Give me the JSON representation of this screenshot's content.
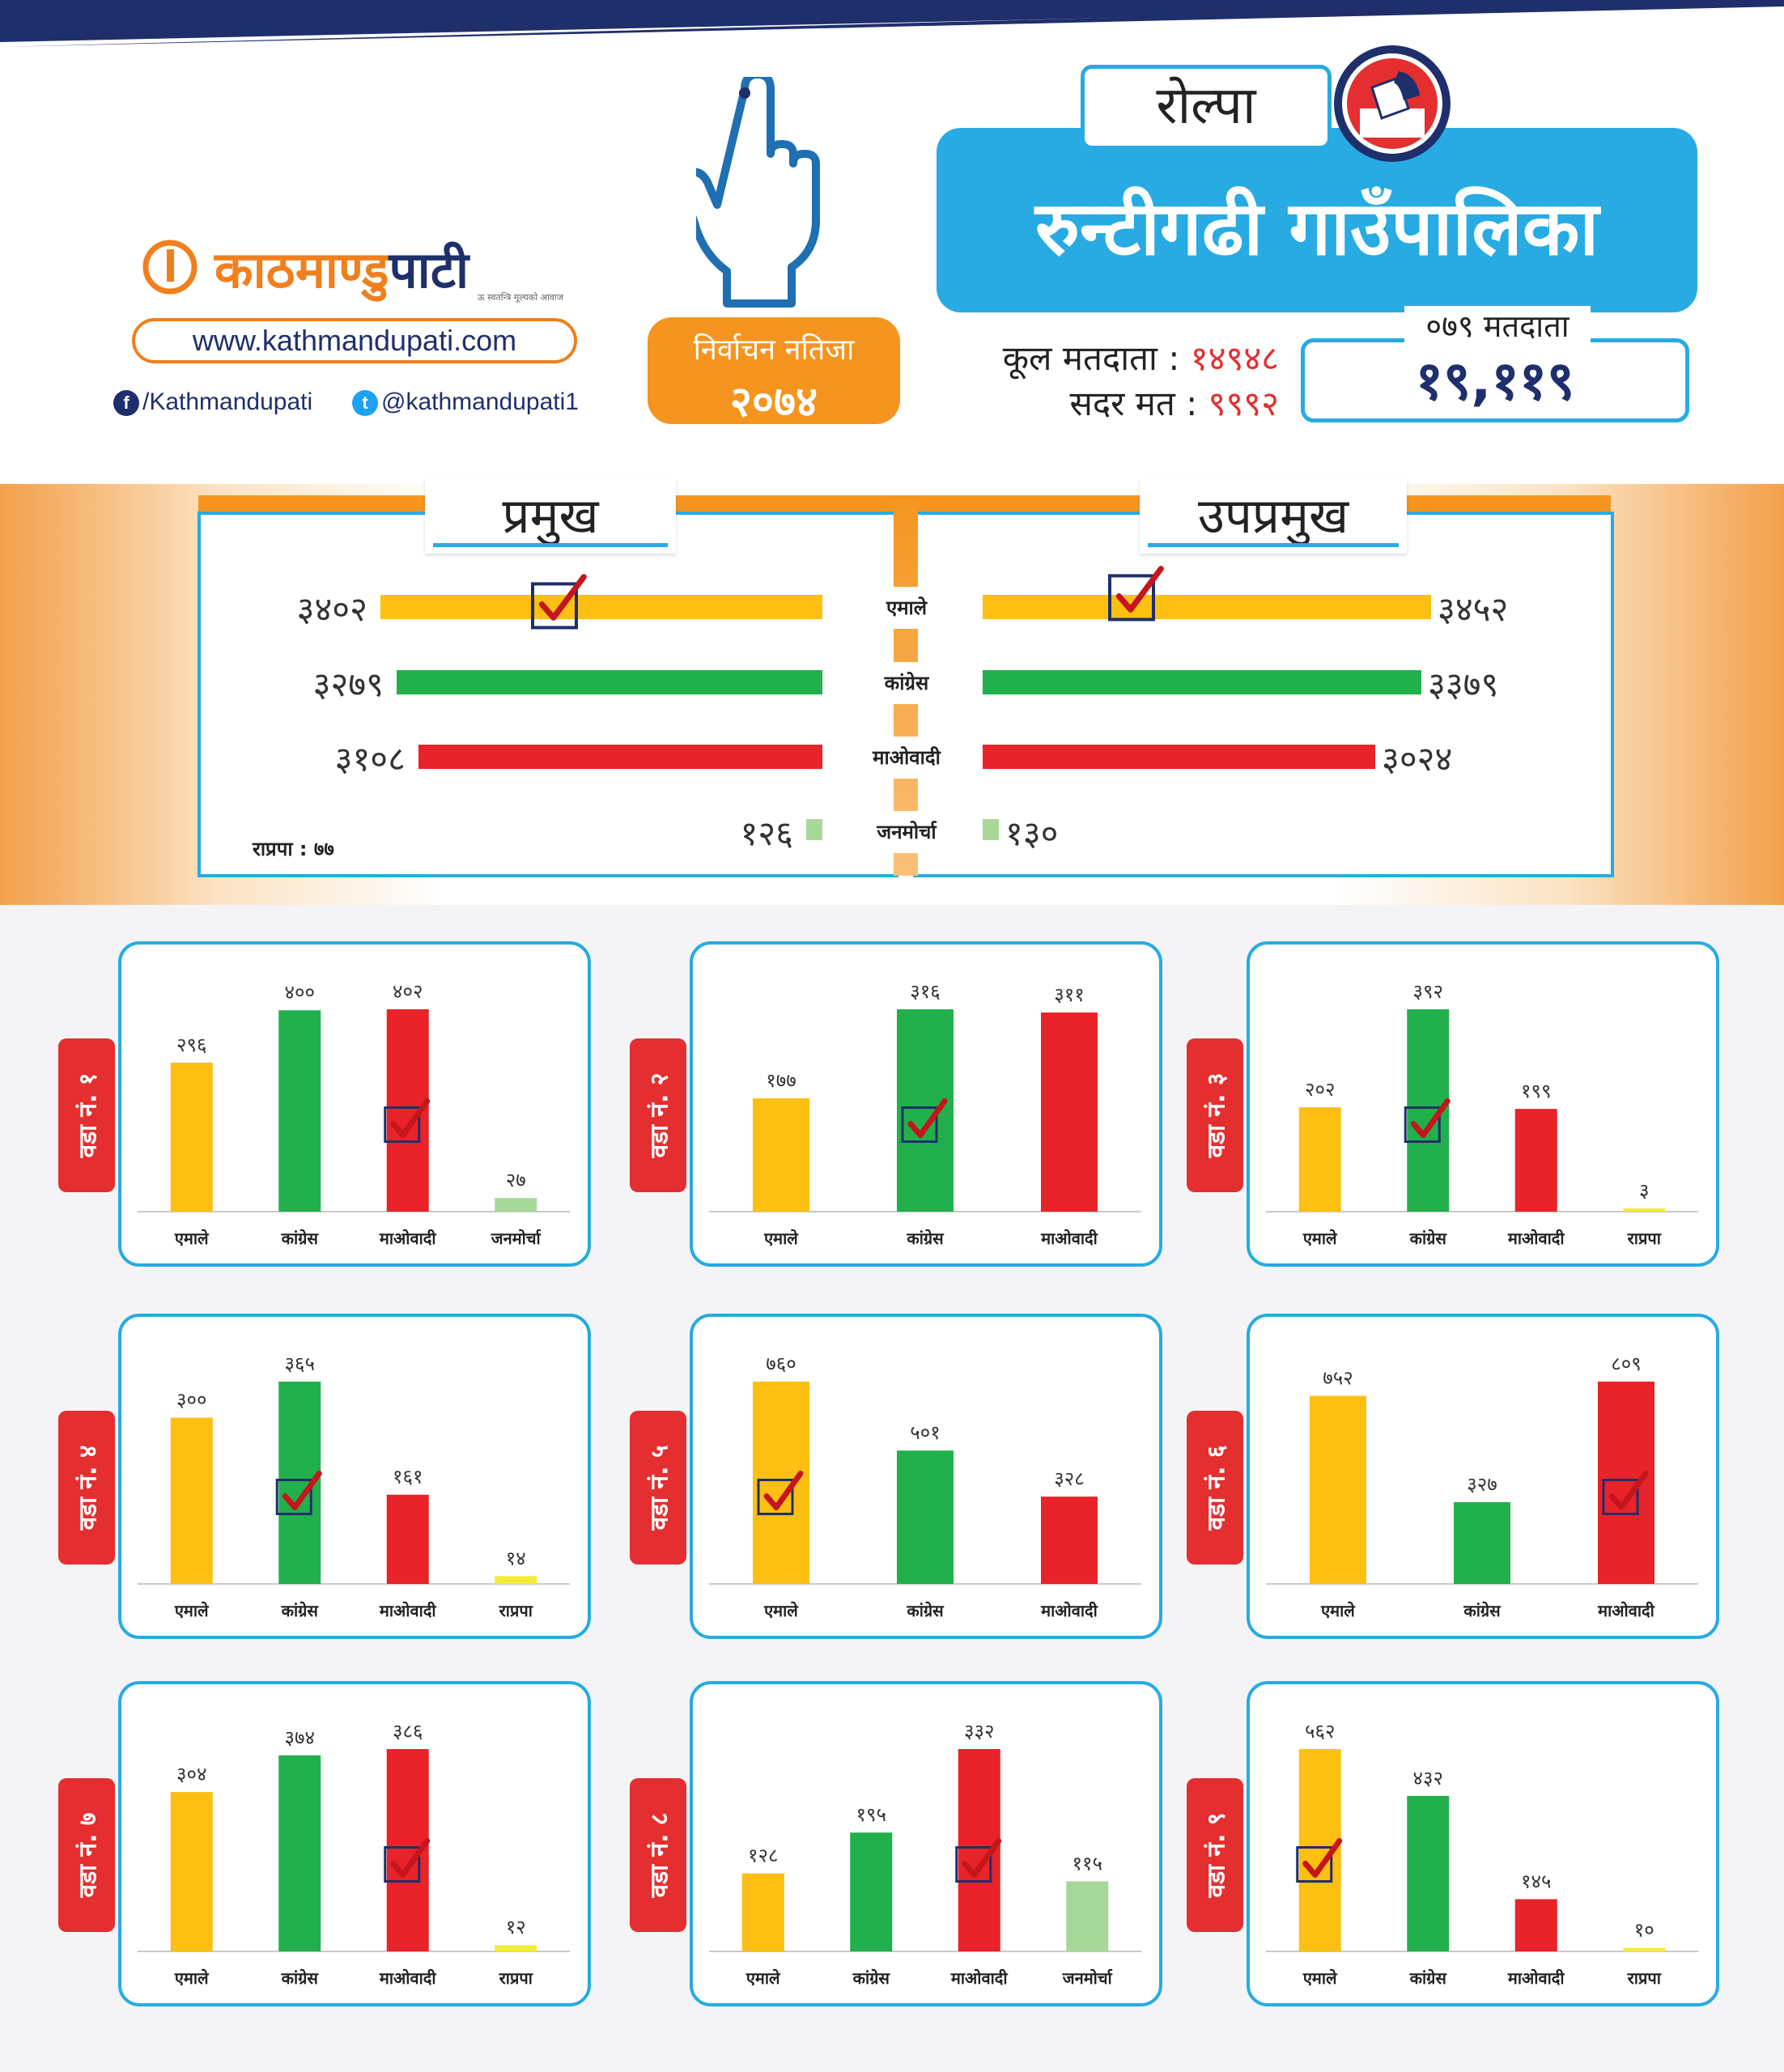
{
  "brand": {
    "logo_main": "काठमाण्डु",
    "logo_rest": "पाटी",
    "logo_tagline": "ऊ स्वतन्त्रि मूल्यको आवाज",
    "website": "www.kathmandupati.com",
    "facebook": "/Kathmandupati",
    "twitter": "@kathmandupati1"
  },
  "header": {
    "district": "रोल्पा",
    "municipality": "रुन्टीगढी गाउँपालिका",
    "result_label": "निर्वाचन नतिजा",
    "result_year": "२०७४",
    "total_voters_label": "कूल मतदाता :",
    "total_voters": "१४९४८",
    "valid_votes_label": "सदर मत :",
    "valid_votes": "९९९२",
    "voters_079_label": "०७९ मतदाता",
    "voters_079": "१९,११९"
  },
  "colors": {
    "एमाले": "#fcbf12",
    "कांग्रेस": "#21b04b",
    "माओवादी": "#e82329",
    "जनमोर्चा": "#a8d899",
    "राप्रपा": "#f4ec37",
    "accent": "#27abe2",
    "orange": "#f5951f"
  },
  "summary": {
    "chief_label": "प्रमुख",
    "deputy_label": "उपप्रमुख",
    "rpp_note": "राप्रपा : ७७",
    "parties": [
      {
        "name": "एमाले",
        "chief": "३४०२",
        "deputy": "३४५२",
        "chief_value": 3402,
        "deputy_value": 3452
      },
      {
        "name": "कांग्रेस",
        "chief": "३२७९",
        "deputy": "३३७९",
        "chief_value": 3279,
        "deputy_value": 3379
      },
      {
        "name": "माओवादी",
        "chief": "३१०८",
        "deputy": "३०२४",
        "chief_value": 3108,
        "deputy_value": 3024
      },
      {
        "name": "जनमोर्चा",
        "chief": "१२६",
        "deputy": "१३०",
        "chief_value": 126,
        "deputy_value": 130
      }
    ],
    "chief_winner": "एमाले",
    "deputy_winner": "एमाले"
  },
  "chart_data": [
    {
      "type": "bar",
      "title": "वडा नं. १",
      "categories": [
        "एमाले",
        "कांग्रेस",
        "माओवादी",
        "जनमोर्चा"
      ],
      "values": [
        296,
        400,
        402,
        27
      ],
      "labels": [
        "२९६",
        "४००",
        "४०२",
        "२७"
      ],
      "winner": "माओवादी"
    },
    {
      "type": "bar",
      "title": "वडा नं. २",
      "categories": [
        "एमाले",
        "कांग्रेस",
        "माओवादी"
      ],
      "values": [
        177,
        316,
        311
      ],
      "labels": [
        "१७७",
        "३१६",
        "३११"
      ],
      "winner": "कांग्रेस"
    },
    {
      "type": "bar",
      "title": "वडा नं. ३",
      "categories": [
        "एमाले",
        "कांग्रेस",
        "माओवादी",
        "राप्रपा"
      ],
      "values": [
        202,
        392,
        199,
        3
      ],
      "labels": [
        "२०२",
        "३९२",
        "१९९",
        "३"
      ],
      "winner": "कांग्रेस"
    },
    {
      "type": "bar",
      "title": "वडा नं. ४",
      "categories": [
        "एमाले",
        "कांग्रेस",
        "माओवादी",
        "राप्रपा"
      ],
      "values": [
        300,
        365,
        161,
        14
      ],
      "labels": [
        "३००",
        "३६५",
        "१६१",
        "१४"
      ],
      "winner": "कांग्रेस"
    },
    {
      "type": "bar",
      "title": "वडा नं. ५",
      "categories": [
        "एमाले",
        "कांग्रेस",
        "माओवादी"
      ],
      "values": [
        760,
        501,
        328
      ],
      "labels": [
        "७६०",
        "५०१",
        "३२८"
      ],
      "winner": "एमाले"
    },
    {
      "type": "bar",
      "title": "वडा नं. ६",
      "categories": [
        "एमाले",
        "कांग्रेस",
        "माओवादी"
      ],
      "values": [
        752,
        327,
        809
      ],
      "labels": [
        "७५२",
        "३२७",
        "८०९"
      ],
      "winner": "माओवादी"
    },
    {
      "type": "bar",
      "title": "वडा नं. ७",
      "categories": [
        "एमाले",
        "कांग्रेस",
        "माओवादी",
        "राप्रपा"
      ],
      "values": [
        304,
        374,
        386,
        12
      ],
      "labels": [
        "३०४",
        "३७४",
        "३८६",
        "१२"
      ],
      "winner": "माओवादी"
    },
    {
      "type": "bar",
      "title": "वडा नं. ८",
      "categories": [
        "एमाले",
        "कांग्रेस",
        "माओवादी",
        "जनमोर्चा"
      ],
      "values": [
        128,
        195,
        332,
        115
      ],
      "labels": [
        "१२८",
        "१९५",
        "३३२",
        "११५"
      ],
      "winner": "माओवादी"
    },
    {
      "type": "bar",
      "title": "वडा नं. ९",
      "categories": [
        "एमाले",
        "कांग्रेस",
        "माओवादी",
        "राप्रपा"
      ],
      "values": [
        562,
        432,
        145,
        10
      ],
      "labels": [
        "५६२",
        "४३२",
        "१४५",
        "१०"
      ],
      "winner": "एमाले"
    }
  ]
}
